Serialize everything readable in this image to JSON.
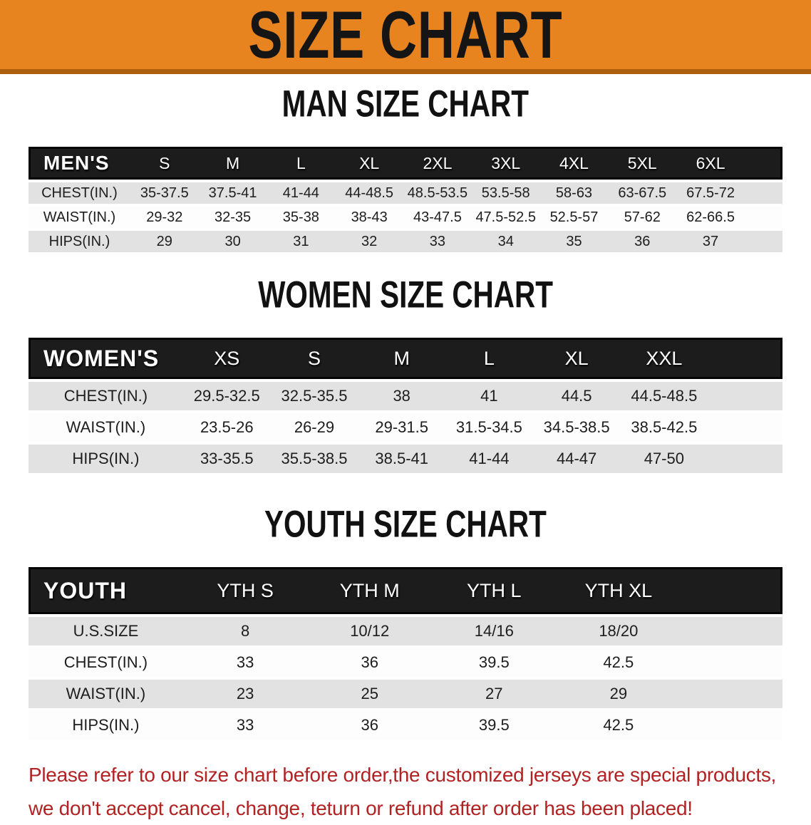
{
  "banner": {
    "title": "SIZE CHART",
    "bg_color": "#E88420",
    "strip_color": "#AD5F0F",
    "text_color": "#151515"
  },
  "sections": {
    "men": {
      "heading": "MAN SIZE CHART"
    },
    "women": {
      "heading": "WOMEN SIZE CHART"
    },
    "youth": {
      "heading": "YOUTH SIZE CHART"
    }
  },
  "tables": {
    "men": {
      "label": "MEN'S",
      "columns": [
        "S",
        "M",
        "L",
        "XL",
        "2XL",
        "3XL",
        "4XL",
        "5XL",
        "6XL"
      ],
      "rows": [
        {
          "label": "CHEST(IN.)",
          "values": [
            "35-37.5",
            "37.5-41",
            "41-44",
            "44-48.5",
            "48.5-53.5",
            "53.5-58",
            "58-63",
            "63-67.5",
            "67.5-72"
          ]
        },
        {
          "label": "WAIST(IN.)",
          "values": [
            "29-32",
            "32-35",
            "35-38",
            "38-43",
            "43-47.5",
            "47.5-52.5",
            "52.5-57",
            "57-62",
            "62-66.5"
          ]
        },
        {
          "label": "HIPS(IN.)",
          "values": [
            "29",
            "30",
            "31",
            "32",
            "33",
            "34",
            "35",
            "36",
            "37"
          ]
        }
      ]
    },
    "women": {
      "label": "WOMEN'S",
      "columns": [
        "XS",
        "S",
        "M",
        "L",
        "XL",
        "XXL"
      ],
      "rows": [
        {
          "label": "CHEST(IN.)",
          "values": [
            "29.5-32.5",
            "32.5-35.5",
            "38",
            "41",
            "44.5",
            "44.5-48.5"
          ]
        },
        {
          "label": "WAIST(IN.)",
          "values": [
            "23.5-26",
            "26-29",
            "29-31.5",
            "31.5-34.5",
            "34.5-38.5",
            "38.5-42.5"
          ]
        },
        {
          "label": "HIPS(IN.)",
          "values": [
            "33-35.5",
            "35.5-38.5",
            "38.5-41",
            "41-44",
            "44-47",
            "47-50"
          ]
        }
      ]
    },
    "youth": {
      "label": "YOUTH",
      "columns": [
        "YTH S",
        "YTH M",
        "YTH L",
        "YTH XL"
      ],
      "rows": [
        {
          "label": "U.S.SIZE",
          "values": [
            "8",
            "10/12",
            "14/16",
            "18/20"
          ]
        },
        {
          "label": "CHEST(IN.)",
          "values": [
            "33",
            "36",
            "39.5",
            "42.5"
          ]
        },
        {
          "label": "WAIST(IN.)",
          "values": [
            "23",
            "25",
            "27",
            "29"
          ]
        },
        {
          "label": "HIPS(IN.)",
          "values": [
            "33",
            "36",
            "39.5",
            "42.5"
          ]
        }
      ]
    }
  },
  "table_style": {
    "header_bg": "#1C1C1C",
    "header_text": "#FFFFFF",
    "row_gray": "#E2E2E2",
    "row_white": "#FDFDFD"
  },
  "disclaimer": {
    "line1": "Please refer to our size chart before order,the customized jerseys are special products,",
    "line2": "we don't accept cancel, change, teturn or refund after order has been placed!",
    "color": "#B22222"
  }
}
